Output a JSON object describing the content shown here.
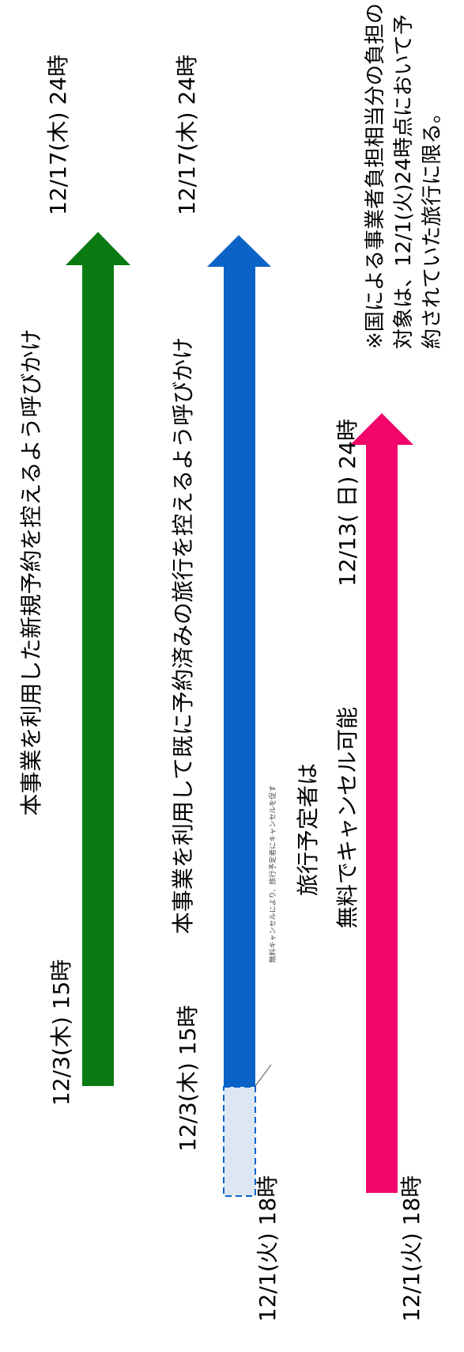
{
  "rows": [
    {
      "caption": "本事業を利用した新規予約を控えるよう呼びかけ",
      "start_label": "12/3(木) 15時",
      "end_label": "12/17(木) 24時",
      "color": "#0a7a12"
    },
    {
      "caption": "本事業を利用して既に予約済みの旅行を控えるよう呼びかけ",
      "start_label": "12/3(木) 15時",
      "end_label": "12/17(木) 24時",
      "pre_label": "12/1(火) 18時",
      "callout": "無料キャンセルにより、旅行予定者にキャンセルを促す",
      "color": "#0b63c8",
      "pre_fill": "#dce7f3"
    },
    {
      "caption_lines": [
        "旅行予定者は",
        "無料でキャンセル可能"
      ],
      "start_label": "12/1(火) 18時",
      "end_label": "12/13( 日) 24時",
      "color": "#f0066b"
    }
  ],
  "note": "※国による事業者負担相当分の負担の対象は、12/1(火)24時点において予約されていた旅行に限る。"
}
